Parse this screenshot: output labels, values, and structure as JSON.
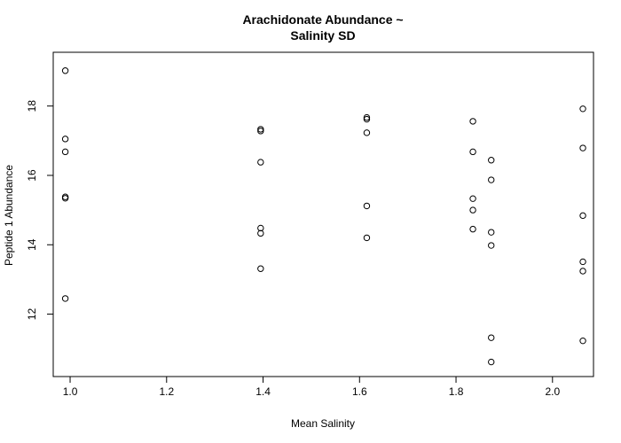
{
  "chart_data": {
    "type": "scatter",
    "title": [
      "Arachidonate Abundance ~",
      "Salinity SD"
    ],
    "xlabel": "Mean Salinity",
    "ylabel": "Peptide 1 Abundance",
    "xlim": [
      0.965,
      2.085
    ],
    "ylim": [
      10.2,
      19.55
    ],
    "xticks": [
      1.0,
      1.2,
      1.4,
      1.6,
      1.8,
      2.0
    ],
    "xtick_labels": [
      "1.0",
      "1.2",
      "1.4",
      "1.6",
      "1.8",
      "2.0"
    ],
    "yticks": [
      12,
      14,
      16,
      18
    ],
    "ytick_labels": [
      "12",
      "14",
      "16",
      "18"
    ],
    "grid": false,
    "points": [
      {
        "x": 0.99,
        "y": 19.02
      },
      {
        "x": 0.99,
        "y": 17.05
      },
      {
        "x": 0.99,
        "y": 16.68
      },
      {
        "x": 0.99,
        "y": 15.38
      },
      {
        "x": 0.99,
        "y": 15.34
      },
      {
        "x": 0.99,
        "y": 12.45
      },
      {
        "x": 1.395,
        "y": 17.33
      },
      {
        "x": 1.395,
        "y": 17.28
      },
      {
        "x": 1.395,
        "y": 16.38
      },
      {
        "x": 1.395,
        "y": 14.48
      },
      {
        "x": 1.395,
        "y": 14.33
      },
      {
        "x": 1.395,
        "y": 13.31
      },
      {
        "x": 1.615,
        "y": 17.67
      },
      {
        "x": 1.615,
        "y": 17.62
      },
      {
        "x": 1.615,
        "y": 17.23
      },
      {
        "x": 1.615,
        "y": 15.12
      },
      {
        "x": 1.615,
        "y": 14.2
      },
      {
        "x": 1.835,
        "y": 17.56
      },
      {
        "x": 1.835,
        "y": 16.68
      },
      {
        "x": 1.835,
        "y": 15.33
      },
      {
        "x": 1.835,
        "y": 15.0
      },
      {
        "x": 1.835,
        "y": 14.45
      },
      {
        "x": 1.873,
        "y": 16.44
      },
      {
        "x": 1.873,
        "y": 15.87
      },
      {
        "x": 1.873,
        "y": 14.36
      },
      {
        "x": 1.873,
        "y": 13.98
      },
      {
        "x": 1.873,
        "y": 11.32
      },
      {
        "x": 1.873,
        "y": 10.62
      },
      {
        "x": 2.063,
        "y": 17.92
      },
      {
        "x": 2.063,
        "y": 16.79
      },
      {
        "x": 2.063,
        "y": 14.84
      },
      {
        "x": 2.063,
        "y": 13.51
      },
      {
        "x": 2.063,
        "y": 13.24
      },
      {
        "x": 2.063,
        "y": 11.23
      }
    ]
  }
}
